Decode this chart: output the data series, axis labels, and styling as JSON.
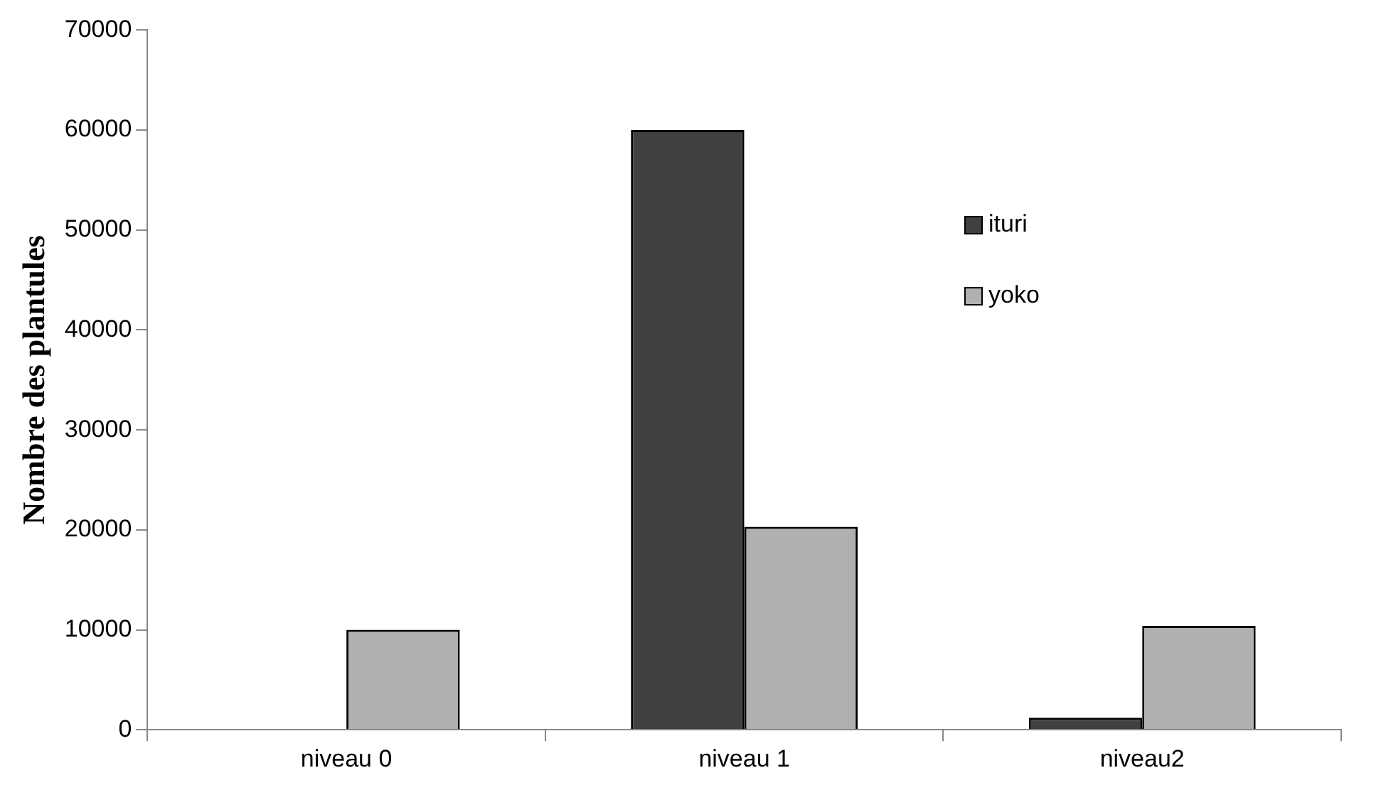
{
  "chart_data": {
    "type": "bar",
    "ylabel": "Nombre des plantules",
    "categories": [
      "niveau 0",
      "niveau 1",
      "niveau2"
    ],
    "series": [
      {
        "name": "ituri",
        "color": "#404040",
        "values": [
          0,
          60000,
          1200
        ]
      },
      {
        "name": "yoko",
        "color": "#b0b0b0",
        "values": [
          10000,
          20300,
          10400
        ]
      }
    ],
    "ylim": [
      0,
      70000
    ],
    "yticks": [
      0,
      10000,
      20000,
      30000,
      40000,
      50000,
      60000,
      70000
    ],
    "grid": false,
    "legend": "right"
  }
}
